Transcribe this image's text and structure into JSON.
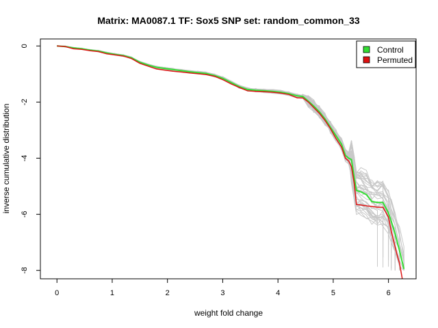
{
  "chart_data": {
    "type": "line",
    "title": "Matrix: MA0087.1 TF: Sox5 SNP set: random_common_33",
    "xlabel": "weight fold change",
    "ylabel": "inverse cumulative distribution",
    "xlim": [
      -0.3,
      6.5
    ],
    "ylim": [
      -8.3,
      0.25
    ],
    "x_ticks": [
      0,
      1,
      2,
      3,
      4,
      5,
      6
    ],
    "y_ticks": [
      0,
      -2,
      -4,
      -6,
      -8
    ],
    "legend": {
      "position": "top-right",
      "entries": [
        "Control",
        "Permuted"
      ]
    },
    "colors": {
      "control": "#33dd33",
      "permuted": "#dd1111",
      "background_series": "#c8c8c8"
    },
    "series": [
      {
        "name": "Control",
        "x": [
          0,
          0.15,
          0.3,
          0.45,
          0.6,
          0.75,
          0.9,
          1.05,
          1.2,
          1.35,
          1.5,
          1.65,
          1.8,
          1.95,
          2.1,
          2.25,
          2.4,
          2.55,
          2.7,
          2.85,
          3.0,
          3.15,
          3.3,
          3.45,
          3.6,
          3.75,
          3.9,
          4.05,
          4.2,
          4.35,
          4.45,
          4.55,
          4.65,
          4.75,
          4.85,
          4.95,
          5.05,
          5.15,
          5.22,
          5.28,
          5.33,
          5.38,
          5.42,
          5.5,
          5.6,
          5.7,
          5.8,
          5.9,
          6.0,
          6.05,
          6.12,
          6.2,
          6.28
        ],
        "y": [
          0,
          -0.02,
          -0.07,
          -0.1,
          -0.15,
          -0.18,
          -0.25,
          -0.3,
          -0.34,
          -0.42,
          -0.58,
          -0.68,
          -0.76,
          -0.8,
          -0.84,
          -0.88,
          -0.92,
          -0.95,
          -0.98,
          -1.05,
          -1.15,
          -1.3,
          -1.45,
          -1.55,
          -1.58,
          -1.6,
          -1.62,
          -1.65,
          -1.7,
          -1.78,
          -1.8,
          -1.97,
          -2.15,
          -2.35,
          -2.6,
          -2.9,
          -3.2,
          -3.5,
          -3.9,
          -4.0,
          -4.05,
          -4.7,
          -5.15,
          -5.2,
          -5.3,
          -5.55,
          -5.58,
          -5.58,
          -5.95,
          -6.25,
          -6.7,
          -7.3,
          -7.95
        ]
      },
      {
        "name": "Permuted",
        "x": [
          0,
          0.15,
          0.3,
          0.45,
          0.6,
          0.75,
          0.9,
          1.05,
          1.2,
          1.35,
          1.5,
          1.65,
          1.8,
          1.95,
          2.1,
          2.25,
          2.4,
          2.55,
          2.7,
          2.85,
          3.0,
          3.15,
          3.3,
          3.45,
          3.6,
          3.75,
          3.9,
          4.05,
          4.2,
          4.35,
          4.45,
          4.55,
          4.65,
          4.75,
          4.85,
          4.95,
          5.05,
          5.15,
          5.22,
          5.28,
          5.33,
          5.38,
          5.42,
          5.5,
          5.6,
          5.7,
          5.8,
          5.9,
          6.0,
          6.05,
          6.1,
          6.15,
          6.2,
          6.25
        ],
        "y": [
          0,
          -0.02,
          -0.1,
          -0.12,
          -0.17,
          -0.2,
          -0.28,
          -0.32,
          -0.36,
          -0.45,
          -0.62,
          -0.72,
          -0.82,
          -0.86,
          -0.9,
          -0.93,
          -0.96,
          -0.99,
          -1.02,
          -1.08,
          -1.2,
          -1.35,
          -1.48,
          -1.6,
          -1.62,
          -1.63,
          -1.65,
          -1.68,
          -1.73,
          -1.85,
          -1.85,
          -2.0,
          -2.2,
          -2.4,
          -2.65,
          -2.95,
          -3.3,
          -3.6,
          -4.0,
          -4.1,
          -4.3,
          -4.9,
          -5.65,
          -5.67,
          -5.7,
          -5.72,
          -5.75,
          -5.75,
          -6.1,
          -6.6,
          -7.0,
          -7.4,
          -7.75,
          -8.3
        ]
      }
    ]
  }
}
